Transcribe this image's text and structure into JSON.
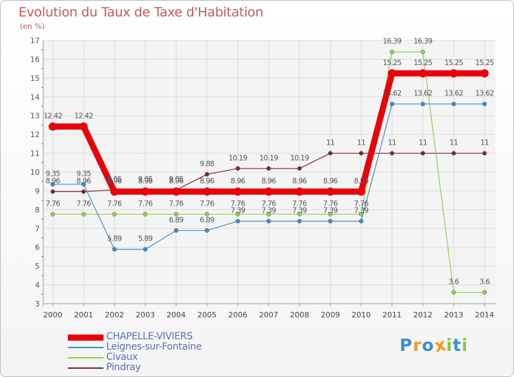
{
  "title": "Evolution du Taux de Taxe d'Habitation",
  "subtitle": "(en %)",
  "logo": {
    "letters": [
      "P",
      "r",
      "o",
      "x",
      "i",
      "t",
      "i"
    ],
    "colors": [
      "#3b8fd1",
      "#f29b1e",
      "#3b8fd1",
      "#f29b1e",
      "#8cc63f",
      "#3b8fd1",
      "#8cc63f"
    ]
  },
  "chart_data": {
    "type": "line",
    "x": [
      "2000",
      "2001",
      "2002",
      "2003",
      "2004",
      "2005",
      "2006",
      "2007",
      "2008",
      "2009",
      "2010",
      "2011",
      "2012",
      "2013",
      "2014"
    ],
    "ylim": [
      3,
      17
    ],
    "yticks": [
      "3",
      "4",
      "5",
      "6",
      "7",
      "8",
      "9",
      "10",
      "11",
      "12",
      "13",
      "14",
      "15",
      "16",
      "17"
    ],
    "grid": true,
    "legend_position": "bottom-left",
    "series": [
      {
        "name": "CHAPELLE-VIVIERS",
        "color": "#e8000b",
        "values": [
          12.42,
          12.42,
          8.96,
          8.96,
          8.96,
          8.96,
          8.96,
          8.96,
          8.96,
          8.96,
          8.96,
          15.25,
          15.25,
          15.25,
          15.25
        ],
        "labels": [
          "12.42",
          "12.42",
          "8.96",
          "8.96",
          "8.96",
          "8.96",
          "8.96",
          "8.96",
          "8.96",
          "8.96",
          "8.96",
          "15.25",
          "15.25",
          "15.25",
          "15.25"
        ]
      },
      {
        "name": "Leignes-sur-Fontaine",
        "color": "#3c8fc9",
        "values": [
          9.35,
          9.35,
          5.89,
          5.89,
          6.89,
          6.89,
          7.39,
          7.39,
          7.39,
          7.39,
          7.39,
          13.62,
          13.62,
          13.62,
          13.62
        ],
        "labels": [
          "9.35",
          "9.35",
          "5.89",
          "5.89",
          "6.89",
          "6.89",
          "7.39",
          "7.39",
          "7.39",
          "7.39",
          "7.39",
          "13.62",
          "13.62",
          "13.62",
          "13.62"
        ]
      },
      {
        "name": "Civaux",
        "color": "#8fd14f",
        "values": [
          7.76,
          7.76,
          7.76,
          7.76,
          7.76,
          7.76,
          7.76,
          7.76,
          7.76,
          7.76,
          7.76,
          16.39,
          16.39,
          3.6,
          3.6
        ],
        "labels": [
          "7.76",
          "7.76",
          "7.76",
          "7.76",
          "7.76",
          "7.76",
          "7.76",
          "7.76",
          "7.76",
          "7.76",
          "7.76",
          "16.39",
          "16.39",
          "3.6",
          "3.6"
        ]
      },
      {
        "name": "Pindray",
        "color": "#7a2a2a",
        "values": [
          8.96,
          8.96,
          9.05,
          9.05,
          9.05,
          9.88,
          10.19,
          10.19,
          10.19,
          11,
          11,
          11,
          11,
          11,
          11
        ],
        "labels": [
          "8.96",
          "8.96",
          "9.05",
          "9.05",
          "9.05",
          "9.88",
          "10.19",
          "10.19",
          "10.19",
          "11",
          "11",
          "11",
          "11",
          "11",
          "11"
        ]
      }
    ]
  }
}
